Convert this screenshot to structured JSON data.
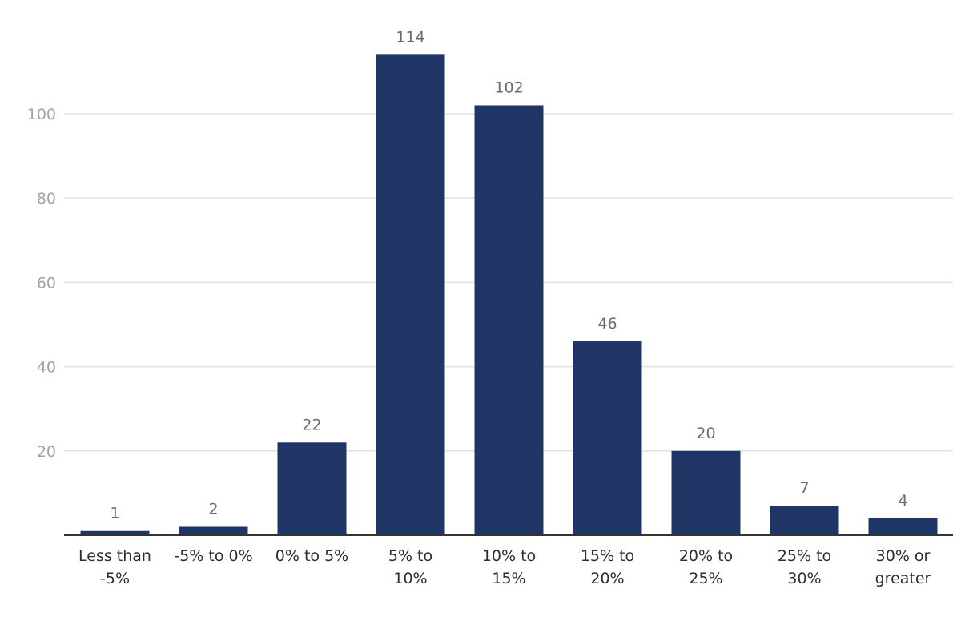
{
  "chart_data": {
    "type": "bar",
    "title": "",
    "xlabel": "",
    "ylabel": "",
    "ylim": [
      0,
      100
    ],
    "y_ticks": [
      20,
      40,
      60,
      80,
      100
    ],
    "grid": true,
    "bar_color": "#1f3566",
    "categories": [
      [
        "Less than",
        "-5%"
      ],
      [
        "-5% to 0%"
      ],
      [
        "0% to 5%"
      ],
      [
        "5% to",
        "10%"
      ],
      [
        "10% to",
        "15%"
      ],
      [
        "15% to",
        "20%"
      ],
      [
        "20% to",
        "25%"
      ],
      [
        "25% to",
        "30%"
      ],
      [
        "30% or",
        "greater"
      ]
    ],
    "values": [
      1,
      2,
      22,
      114,
      102,
      46,
      20,
      7,
      4
    ],
    "data_labels": [
      "1",
      "2",
      "22",
      "114",
      "102",
      "46",
      "20",
      "7",
      "4"
    ]
  }
}
